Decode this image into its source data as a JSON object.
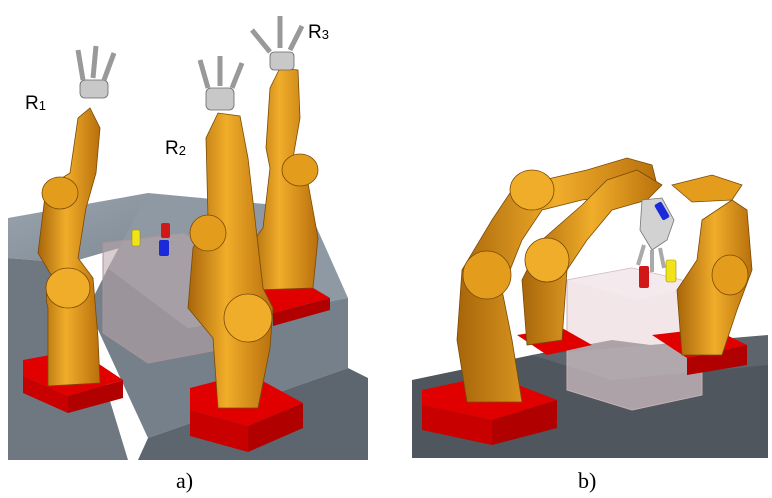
{
  "figure": {
    "panel_a": {
      "caption": "a)",
      "robot_labels": [
        {
          "name": "R",
          "index": "1"
        },
        {
          "name": "R",
          "index": "2"
        },
        {
          "name": "R",
          "index": "3"
        }
      ]
    },
    "panel_b": {
      "caption": "b)"
    }
  },
  "colors": {
    "robot_orange": "#e09a1a",
    "robot_dark": "#8a5308",
    "base_red": "#e00000",
    "floor_gray": "#50565d",
    "platform_gray": "#8c97a3",
    "can_yellow": "#f2e21a",
    "can_red": "#d01818",
    "can_blue": "#1a2ad8",
    "gripper_gray": "#c8c8c8"
  }
}
